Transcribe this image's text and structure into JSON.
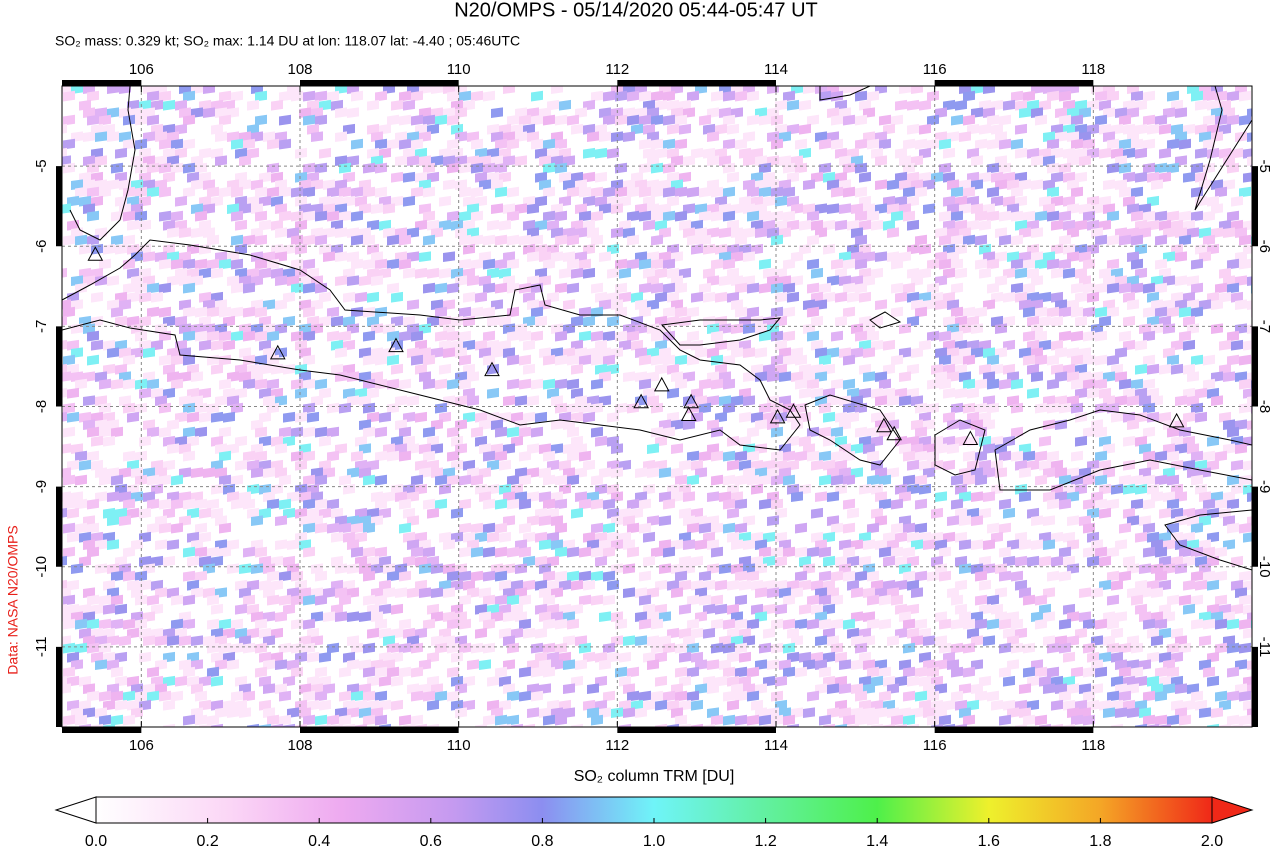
{
  "chart_data": {
    "type": "map",
    "title": "N20/OMPS - 05/14/2020 05:44-05:47 UT",
    "subtitle": "SO₂ mass: 0.329 kt; SO₂ max: 1.14 DU at lon: 118.07 lat: -4.40 ; 05:46UTC",
    "source": "Data: NASA N20/OMPS",
    "colorbar_label": "SO₂ column TRM [DU]",
    "xlim": [
      105,
      120
    ],
    "ylim": [
      -12,
      -4
    ],
    "xticks": [
      106,
      108,
      110,
      112,
      114,
      116,
      118
    ],
    "yticks": [
      -11,
      -10,
      -9,
      -8,
      -7,
      -6,
      -5
    ],
    "grid": true,
    "volcanoes": {
      "lon": [
        107.72,
        109.21,
        110.42,
        112.3,
        112.56,
        112.93,
        112.9,
        114.02,
        114.22,
        115.36,
        115.49,
        116.45,
        119.05,
        105.42
      ],
      "lat": [
        -7.33,
        -7.24,
        -7.54,
        -7.94,
        -7.73,
        -7.94,
        -8.1,
        -8.13,
        -8.06,
        -8.24,
        -8.34,
        -8.4,
        -8.18,
        -6.1
      ]
    },
    "colorbar": {
      "lim": [
        0,
        2
      ],
      "ticks": [
        {
          "value": 0,
          "label": "0.0"
        },
        {
          "value": 0.2,
          "label": "0.2"
        },
        {
          "value": 0.4,
          "label": "0.4"
        },
        {
          "value": 0.6,
          "label": "0.6"
        },
        {
          "value": 0.8,
          "label": "0.8"
        },
        {
          "value": 1,
          "label": "1.0"
        },
        {
          "value": 1.2,
          "label": "1.2"
        },
        {
          "value": 1.4,
          "label": "1.4"
        },
        {
          "value": 1.6,
          "label": "1.6"
        },
        {
          "value": 1.8,
          "label": "1.8"
        },
        {
          "value": 2,
          "label": "2.0"
        }
      ]
    }
  }
}
